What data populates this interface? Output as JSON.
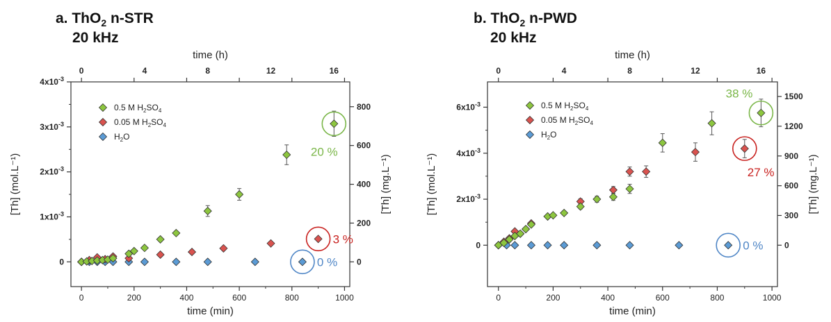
{
  "panels": [
    {
      "title_pre": "a. ThO",
      "title_sub": "2",
      "title_post": " n-STR",
      "subtitle": "20 kHz"
    },
    {
      "title_pre": "b. ThO",
      "title_sub": "2",
      "title_post": " n-PWD",
      "subtitle": "20 kHz"
    }
  ],
  "colors": {
    "green": "#8dc63f",
    "red": "#d9534f",
    "blue": "#5b9bd5",
    "green_text": "#7ab648",
    "red_text": "#c8201e",
    "blue_text": "#4f86c6"
  },
  "chart_data": [
    {
      "type": "scatter",
      "xlabel": "time (min)",
      "x2label": "time (h)",
      "ylabel": "[Th] (mol.L⁻¹)",
      "y2label": "[Th] (mg.L⁻¹)",
      "xlim": [
        -40,
        1020
      ],
      "ylim": [
        -0.00055,
        0.004
      ],
      "xticks": [
        0,
        200,
        400,
        600,
        800,
        1000
      ],
      "x2ticks": [
        0,
        4,
        8,
        12,
        16
      ],
      "yticks": [
        {
          "v": 0,
          "mant": "0",
          "exp": ""
        },
        {
          "v": 0.001,
          "mant": "1x10",
          "exp": "-3"
        },
        {
          "v": 0.002,
          "mant": "2x10",
          "exp": "-3"
        },
        {
          "v": 0.003,
          "mant": "3x10",
          "exp": "-3"
        },
        {
          "v": 0.004,
          "mant": "4x10",
          "exp": "-3"
        }
      ],
      "y2ticks": [
        0,
        200,
        400,
        600,
        800
      ],
      "y2factor": 232000,
      "legend": [
        {
          "pre": "0.5 M H",
          "sub1": "2",
          "mid": "SO",
          "sub2": "4",
          "color": "green"
        },
        {
          "pre": "0.05 M H",
          "sub1": "2",
          "mid": "SO",
          "sub2": "4",
          "color": "red"
        },
        {
          "pre": "H",
          "sub1": "2",
          "mid": "O",
          "sub2": "",
          "color": "blue"
        }
      ],
      "series": [
        {
          "color": "green",
          "x": [
            0,
            20,
            40,
            60,
            80,
            100,
            120,
            180,
            200,
            240,
            300,
            360,
            480,
            600,
            780,
            960
          ],
          "y": [
            0,
            1e-05,
            2e-05,
            3e-05,
            4e-05,
            5e-05,
            8e-05,
            0.00018,
            0.00024,
            0.00031,
            0.0005,
            0.00064,
            0.00113,
            0.0015,
            0.00238,
            0.00307
          ],
          "err": [
            0,
            0,
            0,
            0,
            0,
            0,
            2e-05,
            2e-05,
            3e-05,
            3e-05,
            4e-05,
            4e-05,
            0.00012,
            0.00013,
            0.00022,
            0.00028
          ]
        },
        {
          "color": "red",
          "x": [
            0,
            30,
            60,
            90,
            120,
            180,
            300,
            420,
            540,
            720,
            900
          ],
          "y": [
            0,
            4e-05,
            0.0001,
            6e-05,
            0.00012,
            8e-05,
            0.00016,
            0.00022,
            0.0003,
            0.00041,
            0.00051
          ],
          "err": [
            0,
            1e-05,
            2e-05,
            2e-05,
            2e-05,
            2e-05,
            2e-05,
            2e-05,
            2e-05,
            2e-05,
            3e-05
          ]
        },
        {
          "color": "blue",
          "x": [
            0,
            30,
            60,
            90,
            120,
            180,
            240,
            360,
            480,
            660,
            840
          ],
          "y": [
            0,
            0,
            0,
            0,
            0,
            0,
            0,
            0,
            0,
            0,
            0
          ],
          "err": [
            0,
            0,
            0,
            0,
            0,
            0,
            0,
            0,
            0,
            0,
            0
          ]
        }
      ],
      "annotations": [
        {
          "text": "20 %",
          "color": "green",
          "x": 960,
          "y": 0.00307
        },
        {
          "text": "3 %",
          "color": "red",
          "x": 900,
          "y": 0.00051
        },
        {
          "text": "0 %",
          "color": "blue",
          "x": 840,
          "y": 0
        }
      ]
    },
    {
      "type": "scatter",
      "xlabel": "time (min)",
      "x2label": "time (h)",
      "ylabel": "[Th] (mol.L⁻¹)",
      "y2label": "[Th] (mg.L⁻¹)",
      "xlim": [
        -40,
        1020
      ],
      "ylim": [
        -0.0018,
        0.0071
      ],
      "xticks": [
        0,
        200,
        400,
        600,
        800,
        1000
      ],
      "x2ticks": [
        0,
        4,
        8,
        12,
        16
      ],
      "yticks": [
        {
          "v": 0,
          "mant": "0",
          "exp": ""
        },
        {
          "v": 0.002,
          "mant": "2x10",
          "exp": "-3"
        },
        {
          "v": 0.004,
          "mant": "4x10",
          "exp": "-3"
        },
        {
          "v": 0.006,
          "mant": "6x10",
          "exp": "-3"
        }
      ],
      "y2ticks": [
        0,
        300,
        600,
        900,
        1200,
        1500
      ],
      "y2factor": 232000,
      "legend": [
        {
          "pre": "0.5 M H",
          "sub1": "2",
          "mid": "SO",
          "sub2": "4",
          "color": "green"
        },
        {
          "pre": "0.05 M H",
          "sub1": "2",
          "mid": "SO",
          "sub2": "4",
          "color": "red"
        },
        {
          "pre": "H",
          "sub1": "2",
          "mid": "O",
          "sub2": "",
          "color": "blue"
        }
      ],
      "series": [
        {
          "color": "green",
          "x": [
            0,
            20,
            40,
            60,
            80,
            100,
            120,
            180,
            200,
            240,
            300,
            360,
            420,
            480,
            600,
            780,
            960
          ],
          "y": [
            0,
            0.0001,
            0.00025,
            0.0004,
            0.0005,
            0.0007,
            0.0009,
            0.00125,
            0.0013,
            0.0014,
            0.00168,
            0.002,
            0.0021,
            0.00245,
            0.00445,
            0.0053,
            0.00575
          ],
          "err": [
            0,
            3e-05,
            4e-05,
            4e-05,
            5e-05,
            5e-05,
            6e-05,
            7e-05,
            8e-05,
            8e-05,
            0.0001,
            0.00013,
            0.00015,
            0.0002,
            0.0004,
            0.0005,
            0.0006
          ]
        },
        {
          "color": "red",
          "x": [
            0,
            20,
            40,
            60,
            80,
            100,
            120,
            180,
            300,
            420,
            480,
            540,
            720,
            900
          ],
          "y": [
            0,
            0.00015,
            0.0003,
            0.0006,
            0.0005,
            0.0007,
            0.00095,
            0.00125,
            0.0019,
            0.0024,
            0.0032,
            0.0032,
            0.00405,
            0.0042
          ],
          "err": [
            0,
            3e-05,
            4e-05,
            5e-05,
            5e-05,
            5e-05,
            6e-05,
            7e-05,
            0.00012,
            0.00015,
            0.0002,
            0.00025,
            0.0004,
            0.0004
          ]
        },
        {
          "color": "blue",
          "x": [
            0,
            30,
            60,
            120,
            180,
            240,
            360,
            480,
            660,
            840
          ],
          "y": [
            0,
            0,
            0,
            0,
            0,
            0,
            0,
            0,
            0,
            0
          ],
          "err": [
            0,
            0,
            0,
            0,
            0,
            0,
            0,
            0,
            0,
            0
          ]
        }
      ],
      "annotations": [
        {
          "text": "38 %",
          "color": "green",
          "x": 960,
          "y": 0.00575
        },
        {
          "text": "27 %",
          "color": "red",
          "x": 900,
          "y": 0.0042
        },
        {
          "text": "0 %",
          "color": "blue",
          "x": 840,
          "y": 0
        }
      ]
    }
  ]
}
